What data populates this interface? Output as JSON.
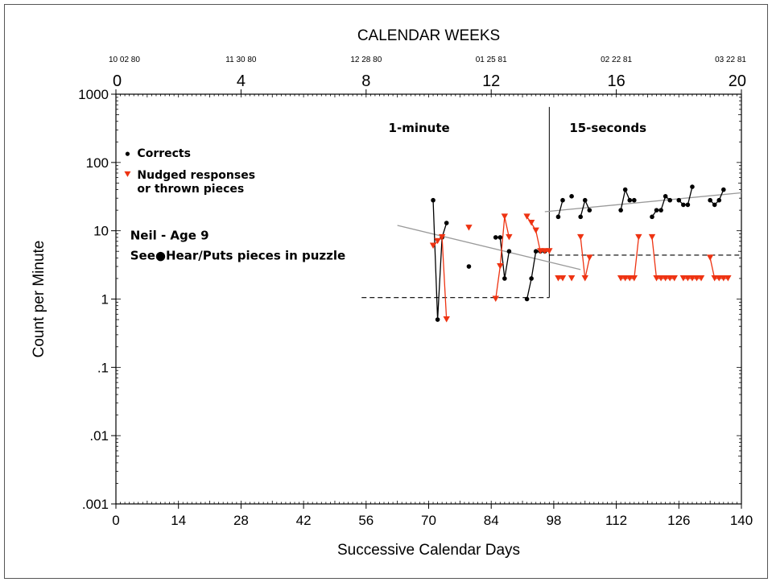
{
  "chart_data": {
    "type": "scatter",
    "title": "CALENDAR WEEKS",
    "xlabel": "Successive Calendar Days",
    "ylabel": "Count per Minute",
    "x_range": [
      0,
      140
    ],
    "y_range": [
      0.001,
      1000
    ],
    "y_scale": "log",
    "x_ticks": [
      "0",
      "14",
      "28",
      "42",
      "56",
      "70",
      "84",
      "98",
      "112",
      "126",
      "140"
    ],
    "y_ticks": [
      {
        "value": 1000,
        "label": "1000"
      },
      {
        "value": 100,
        "label": "100"
      },
      {
        "value": 10,
        "label": "10"
      },
      {
        "value": 1,
        "label": "1"
      },
      {
        "value": 0.1,
        "label": ".1"
      },
      {
        "value": 0.01,
        "label": ".01"
      },
      {
        "value": 0.001,
        "label": ".001"
      }
    ],
    "week_ticks": [
      "0",
      "4",
      "8",
      "12",
      "16",
      "20"
    ],
    "week_dates": [
      "10 02 80",
      "11 30 80",
      "12 28 80",
      "01 25 81",
      "02 22 81",
      "03 22 81"
    ],
    "phases": [
      {
        "label": "1-minute",
        "start": 55,
        "end": 97
      },
      {
        "label": "15-seconds",
        "start": 97,
        "end": 140
      }
    ],
    "phase_line_day": 97,
    "series": [
      {
        "name": "Corrects",
        "color": "#000000",
        "marker": "circle",
        "segments": [
          [
            [
              71,
              28
            ],
            [
              72,
              0.5
            ],
            [
              73,
              8
            ],
            [
              74,
              13
            ]
          ],
          [
            [
              79,
              3
            ]
          ],
          [
            [
              85,
              8
            ],
            [
              86,
              8
            ],
            [
              87,
              2
            ],
            [
              88,
              5
            ]
          ],
          [
            [
              92,
              1
            ],
            [
              93,
              2
            ],
            [
              94,
              5
            ],
            [
              95,
              5
            ],
            [
              96,
              5
            ]
          ],
          [
            [
              99,
              16
            ],
            [
              100,
              28
            ]
          ],
          [
            [
              102,
              32
            ]
          ],
          [
            [
              104,
              16
            ],
            [
              105,
              28
            ],
            [
              106,
              20
            ]
          ],
          [
            [
              113,
              20
            ],
            [
              114,
              40
            ],
            [
              115,
              28
            ],
            [
              116,
              28
            ]
          ],
          [
            [
              120,
              16
            ],
            [
              121,
              20
            ],
            [
              122,
              20
            ],
            [
              123,
              32
            ],
            [
              124,
              28
            ]
          ],
          [
            [
              126,
              28
            ],
            [
              127,
              24
            ],
            [
              128,
              24
            ],
            [
              129,
              44
            ]
          ],
          [
            [
              133,
              28
            ],
            [
              134,
              24
            ],
            [
              135,
              28
            ],
            [
              136,
              40
            ]
          ]
        ]
      },
      {
        "name": "Nudged responses or thrown pieces",
        "color": "#ee3312",
        "marker": "triangle-down",
        "segments": [
          [
            [
              71,
              6
            ],
            [
              72,
              7
            ],
            [
              73,
              8
            ],
            [
              74,
              0.5
            ]
          ],
          [
            [
              79,
              11
            ]
          ],
          [
            [
              85,
              1
            ],
            [
              86,
              3
            ],
            [
              87,
              16
            ],
            [
              88,
              8
            ]
          ],
          [
            [
              92,
              16
            ],
            [
              93,
              13
            ],
            [
              94,
              10
            ],
            [
              95,
              5
            ],
            [
              96,
              5
            ],
            [
              97,
              5
            ]
          ],
          [
            [
              99,
              2
            ],
            [
              100,
              2
            ]
          ],
          [
            [
              102,
              2
            ]
          ],
          [
            [
              104,
              8
            ],
            [
              105,
              2
            ],
            [
              106,
              4
            ]
          ],
          [
            [
              113,
              2
            ],
            [
              114,
              2
            ],
            [
              115,
              2
            ],
            [
              116,
              2
            ],
            [
              117,
              8
            ]
          ],
          [
            [
              120,
              8
            ],
            [
              121,
              2
            ],
            [
              122,
              2
            ],
            [
              123,
              2
            ],
            [
              124,
              2
            ],
            [
              125,
              2
            ]
          ],
          [
            [
              127,
              2
            ],
            [
              128,
              2
            ],
            [
              129,
              2
            ],
            [
              130,
              2
            ],
            [
              131,
              2
            ]
          ],
          [
            [
              133,
              4
            ],
            [
              134,
              2
            ],
            [
              135,
              2
            ],
            [
              136,
              2
            ],
            [
              137,
              2
            ]
          ]
        ]
      }
    ],
    "aims": [
      {
        "x": [
          55,
          97
        ],
        "y": 1.05
      },
      {
        "x": [
          97,
          140
        ],
        "y": 4.4
      }
    ],
    "celeration_lines": [
      {
        "x": [
          63,
          104
        ],
        "y": [
          12,
          2.7
        ]
      },
      {
        "x": [
          96,
          140
        ],
        "y": [
          19,
          36
        ]
      }
    ],
    "legend": {
      "placement": "upper-left"
    },
    "annotations": [
      "Neil - Age 9",
      "See●Hear/Puts pieces in puzzle"
    ]
  }
}
